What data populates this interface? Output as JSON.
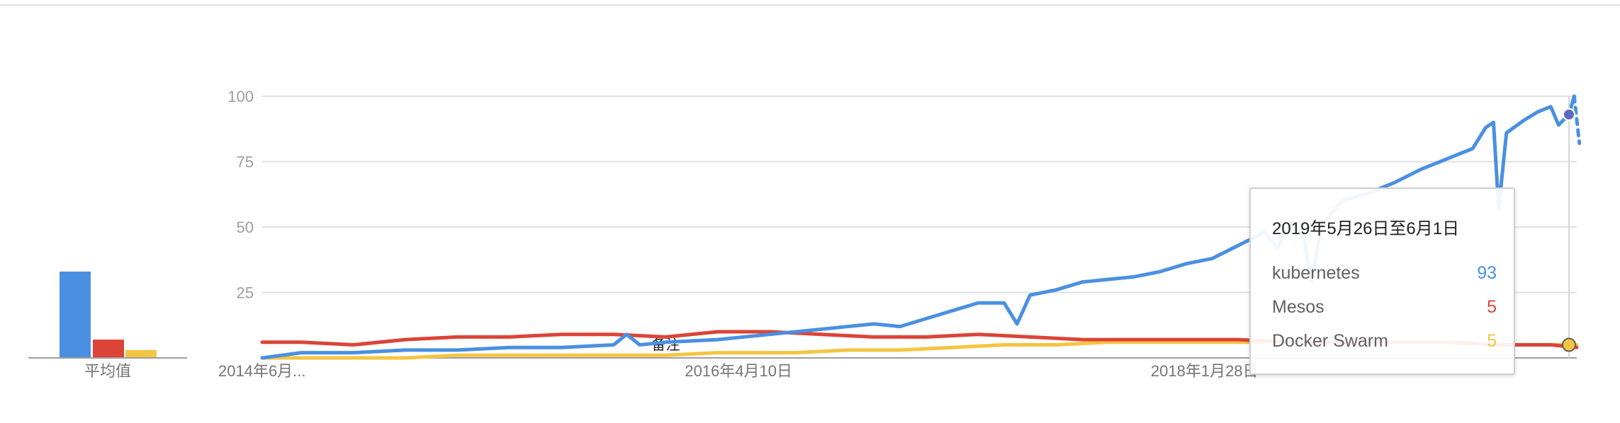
{
  "chart_data": {
    "type": "line",
    "title": "",
    "xlabel": "",
    "ylabel": "",
    "ylim": [
      0,
      100
    ],
    "y_ticks": [
      "25",
      "50",
      "75",
      "100"
    ],
    "x_tick_labels": [
      "2014年6月...",
      "2016年4月10日",
      "2018年1月28日"
    ],
    "x_range": [
      2014.45,
      2019.5
    ],
    "x_tick_positions": [
      2014.45,
      2016.28,
      2018.07
    ],
    "annotation": {
      "label": "备注",
      "x": 2016.0
    },
    "average": {
      "label": "平均值",
      "values": [
        33,
        7,
        3
      ]
    },
    "series": [
      {
        "name": "kubernetes",
        "color": "#4a90e2",
        "points": [
          [
            2014.45,
            0
          ],
          [
            2014.6,
            2
          ],
          [
            2014.8,
            2
          ],
          [
            2015.0,
            3
          ],
          [
            2015.2,
            3
          ],
          [
            2015.4,
            4
          ],
          [
            2015.6,
            4
          ],
          [
            2015.8,
            5
          ],
          [
            2015.85,
            9
          ],
          [
            2015.9,
            5
          ],
          [
            2016.0,
            6
          ],
          [
            2016.2,
            7
          ],
          [
            2016.4,
            9
          ],
          [
            2016.6,
            11
          ],
          [
            2016.8,
            13
          ],
          [
            2016.9,
            12
          ],
          [
            2017.0,
            15
          ],
          [
            2017.1,
            18
          ],
          [
            2017.2,
            21
          ],
          [
            2017.3,
            21
          ],
          [
            2017.35,
            13
          ],
          [
            2017.4,
            24
          ],
          [
            2017.5,
            26
          ],
          [
            2017.6,
            29
          ],
          [
            2017.7,
            30
          ],
          [
            2017.8,
            31
          ],
          [
            2017.9,
            33
          ],
          [
            2018.0,
            36
          ],
          [
            2018.1,
            38
          ],
          [
            2018.2,
            43
          ],
          [
            2018.3,
            48
          ],
          [
            2018.35,
            42
          ],
          [
            2018.4,
            52
          ],
          [
            2018.45,
            47
          ],
          [
            2018.48,
            29
          ],
          [
            2018.52,
            51
          ],
          [
            2018.6,
            60
          ],
          [
            2018.7,
            63
          ],
          [
            2018.8,
            67
          ],
          [
            2018.9,
            72
          ],
          [
            2019.0,
            76
          ],
          [
            2019.1,
            80
          ],
          [
            2019.15,
            88
          ],
          [
            2019.18,
            90
          ],
          [
            2019.2,
            57
          ],
          [
            2019.23,
            86
          ],
          [
            2019.3,
            91
          ],
          [
            2019.35,
            94
          ],
          [
            2019.4,
            96
          ],
          [
            2019.43,
            89
          ],
          [
            2019.47,
            93
          ],
          [
            2019.49,
            100
          ]
        ],
        "partial_points": [
          [
            2019.49,
            100
          ],
          [
            2019.51,
            82
          ]
        ]
      },
      {
        "name": "Mesos",
        "color": "#db4437",
        "points": [
          [
            2014.45,
            6
          ],
          [
            2014.6,
            6
          ],
          [
            2014.8,
            5
          ],
          [
            2015.0,
            7
          ],
          [
            2015.2,
            8
          ],
          [
            2015.4,
            8
          ],
          [
            2015.6,
            9
          ],
          [
            2015.8,
            9
          ],
          [
            2016.0,
            8
          ],
          [
            2016.2,
            10
          ],
          [
            2016.4,
            10
          ],
          [
            2016.6,
            9
          ],
          [
            2016.8,
            8
          ],
          [
            2017.0,
            8
          ],
          [
            2017.2,
            9
          ],
          [
            2017.4,
            8
          ],
          [
            2017.6,
            7
          ],
          [
            2017.8,
            7
          ],
          [
            2018.0,
            7
          ],
          [
            2018.2,
            7
          ],
          [
            2018.4,
            6
          ],
          [
            2018.6,
            6
          ],
          [
            2018.8,
            6
          ],
          [
            2019.0,
            6
          ],
          [
            2019.2,
            5
          ],
          [
            2019.4,
            5
          ],
          [
            2019.5,
            4
          ]
        ]
      },
      {
        "name": "Docker Swarm",
        "color": "#f4c542",
        "points": [
          [
            2014.45,
            0
          ],
          [
            2014.8,
            0
          ],
          [
            2015.0,
            0
          ],
          [
            2015.2,
            1
          ],
          [
            2015.5,
            1
          ],
          [
            2015.8,
            1
          ],
          [
            2016.0,
            1
          ],
          [
            2016.2,
            2
          ],
          [
            2016.5,
            2
          ],
          [
            2016.7,
            3
          ],
          [
            2016.9,
            3
          ],
          [
            2017.1,
            4
          ],
          [
            2017.3,
            5
          ],
          [
            2017.5,
            5
          ],
          [
            2017.7,
            6
          ],
          [
            2017.9,
            6
          ],
          [
            2018.1,
            6
          ],
          [
            2018.3,
            6
          ],
          [
            2018.5,
            6
          ],
          [
            2018.7,
            6
          ],
          [
            2019.0,
            6
          ],
          [
            2019.2,
            5
          ],
          [
            2019.4,
            5
          ],
          [
            2019.5,
            5
          ]
        ]
      }
    ]
  },
  "tooltip": {
    "date": "2019年5月26日至6月1日",
    "rows": [
      {
        "name": "kubernetes",
        "value": "93",
        "color": "#4a90e2"
      },
      {
        "name": "Mesos",
        "value": "5",
        "color": "#db4437"
      },
      {
        "name": "Docker Swarm",
        "value": "5",
        "color": "#f4c542"
      }
    ],
    "x": 2019.47
  }
}
